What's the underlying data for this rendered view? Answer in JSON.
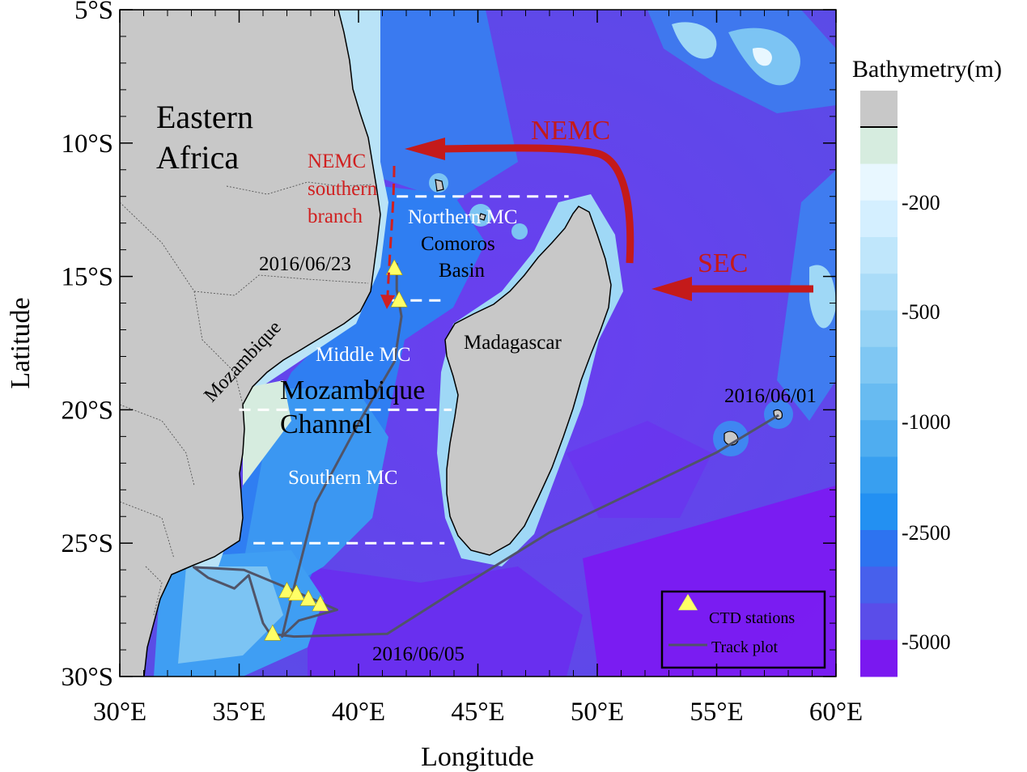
{
  "axes": {
    "xlabel": "Longitude",
    "ylabel": "Latitude",
    "x_ticks": [
      {
        "lon": 30,
        "label": "30°E"
      },
      {
        "lon": 35,
        "label": "35°E"
      },
      {
        "lon": 40,
        "label": "40°E"
      },
      {
        "lon": 45,
        "label": "45°E"
      },
      {
        "lon": 50,
        "label": "50°E"
      },
      {
        "lon": 55,
        "label": "55°E"
      },
      {
        "lon": 60,
        "label": "60°E"
      }
    ],
    "y_ticks": [
      {
        "lat": -5,
        "label": "5°S"
      },
      {
        "lat": -10,
        "label": "10°S"
      },
      {
        "lat": -15,
        "label": "15°S"
      },
      {
        "lat": -20,
        "label": "20°S"
      },
      {
        "lat": -25,
        "label": "25°S"
      },
      {
        "lat": -30,
        "label": "30°S"
      }
    ],
    "lon_range": [
      30,
      60
    ],
    "lat_range": [
      -30,
      -5
    ]
  },
  "colorbar": {
    "title": "Bathymetry(m)",
    "labels": [
      "-200",
      "-500",
      "-1000",
      "-2500",
      "-5000"
    ],
    "colors": [
      "#c8c8c8",
      "#d6ecdf",
      "#e8f7ff",
      "#d4efff",
      "#bfe6fb",
      "#aadcf8",
      "#95d2f5",
      "#7fc7f3",
      "#68bbf1",
      "#4fadf0",
      "#389ff0",
      "#2390f2",
      "#2d73f0",
      "#4760ec",
      "#5a4de9",
      "#7a18f0"
    ]
  },
  "regions": {
    "africa": [
      "Eastern",
      "Africa"
    ],
    "mozambique": "Mozambique",
    "madagascar": "Madagascar",
    "channel": [
      "Mozambique",
      "Channel"
    ],
    "northern_mc": "Northern MC",
    "comoros": [
      "Comoros",
      "Basin"
    ],
    "middle_mc": "Middle MC",
    "southern_mc": "Southern MC"
  },
  "currents": {
    "nemc": "NEMC",
    "sec": "SEC",
    "southern_branch": [
      "NEMC",
      "southern",
      "branch"
    ]
  },
  "dates": {
    "d0623": "2016/06/23",
    "d0601": "2016/06/01",
    "d0605": "2016/06/05"
  },
  "legend": {
    "ctd": "CTD stations",
    "track": "Track plot"
  },
  "ctd_stations": [
    {
      "lon": 41.5,
      "lat": -14.7
    },
    {
      "lon": 41.7,
      "lat": -15.9
    },
    {
      "lon": 36.4,
      "lat": -28.4
    },
    {
      "lon": 37.0,
      "lat": -26.8
    },
    {
      "lon": 37.4,
      "lat": -26.9
    },
    {
      "lon": 37.9,
      "lat": -27.1
    },
    {
      "lon": 38.4,
      "lat": -27.3
    }
  ],
  "track": [
    [
      57.6,
      -20.2
    ],
    [
      55.0,
      -21.6
    ],
    [
      48.0,
      -24.6
    ],
    [
      44.2,
      -26.7
    ],
    [
      41.2,
      -28.4
    ],
    [
      37.3,
      -28.5
    ],
    [
      36.3,
      -28.4
    ],
    [
      36.0,
      -28.0
    ],
    [
      35.4,
      -26.2
    ],
    [
      34.8,
      -26.7
    ],
    [
      33.7,
      -26.3
    ],
    [
      33.1,
      -25.9
    ],
    [
      35.2,
      -26.0
    ],
    [
      36.8,
      -26.6
    ],
    [
      39.1,
      -27.5
    ],
    [
      37.5,
      -27.9
    ],
    [
      36.8,
      -28.5
    ],
    [
      37.2,
      -27.0
    ],
    [
      38.2,
      -23.5
    ],
    [
      40.0,
      -20.5
    ],
    [
      41.5,
      -18.2
    ],
    [
      41.8,
      -16.5
    ],
    [
      41.6,
      -15.5
    ],
    [
      41.6,
      -14.5
    ]
  ],
  "sections": [
    {
      "lat": -12.0,
      "lon_start": 41.6,
      "lon_end": 48.8
    },
    {
      "lat": -15.9,
      "lon_start": 41.4,
      "lon_end": 43.5
    },
    {
      "lat": -20.0,
      "lon_start": 35.0,
      "lon_end": 43.9
    },
    {
      "lat": -25.0,
      "lon_start": 35.6,
      "lon_end": 43.6
    }
  ]
}
